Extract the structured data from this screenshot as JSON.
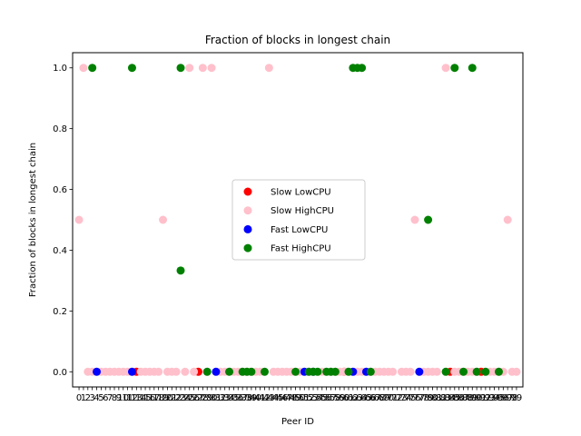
{
  "chart_data": {
    "type": "scatter",
    "title": "Fraction of blocks in longest chain",
    "xlabel": "Peer ID",
    "ylabel": "Fraction of blocks in longest chain",
    "xlim": [
      -1.45,
      100.45
    ],
    "ylim": [
      -0.05,
      1.05
    ],
    "yticks": [
      0.0,
      0.2,
      0.4,
      0.6,
      0.8,
      1.0
    ],
    "ytick_labels": [
      "0.0",
      "0.2",
      "0.4",
      "0.6",
      "0.8",
      "1.0"
    ],
    "xticks": [
      0,
      1,
      2,
      3,
      4,
      5,
      6,
      7,
      8,
      9,
      10,
      11,
      12,
      13,
      14,
      15,
      16,
      17,
      18,
      19,
      20,
      21,
      22,
      23,
      24,
      25,
      26,
      27,
      28,
      29,
      30,
      31,
      32,
      33,
      34,
      35,
      36,
      37,
      38,
      39,
      40,
      41,
      42,
      43,
      44,
      45,
      46,
      47,
      48,
      49,
      50,
      51,
      52,
      53,
      54,
      55,
      56,
      57,
      58,
      59,
      60,
      61,
      62,
      63,
      64,
      65,
      66,
      67,
      68,
      69,
      70,
      71,
      72,
      73,
      74,
      75,
      76,
      77,
      78,
      79,
      80,
      81,
      82,
      83,
      84,
      85,
      86,
      87,
      88,
      89,
      90,
      91,
      92,
      93,
      94,
      95,
      96,
      97,
      98,
      99
    ],
    "grid": false,
    "legend_position": "center",
    "series": [
      {
        "name": "Slow LowCPU",
        "color": "#ff0000",
        "x": [
          13,
          27,
          60,
          84,
          91
        ],
        "y": [
          0,
          0,
          0,
          0,
          0
        ]
      },
      {
        "name": "Slow HighCPU",
        "color": "#ffc0cb",
        "x": [
          0,
          1,
          2,
          3,
          5,
          6,
          7,
          8,
          9,
          10,
          11,
          14,
          15,
          16,
          17,
          18,
          19,
          20,
          21,
          22,
          24,
          25,
          26,
          28,
          29,
          30,
          32,
          33,
          35,
          36,
          37,
          38,
          40,
          41,
          43,
          44,
          45,
          46,
          47,
          48,
          50,
          52,
          55,
          57,
          58,
          59,
          60,
          63,
          64,
          66,
          67,
          68,
          69,
          70,
          71,
          73,
          74,
          75,
          76,
          78,
          79,
          80,
          81,
          83,
          85,
          86,
          88,
          89,
          90,
          93,
          94,
          95,
          96,
          97,
          98,
          99
        ],
        "y": [
          0.5,
          1,
          0,
          0,
          0,
          0,
          0,
          0,
          0,
          0,
          0,
          0,
          0,
          0,
          0,
          0,
          0.5,
          0,
          0,
          0,
          0,
          1,
          0,
          1,
          0,
          1,
          0,
          0,
          0,
          0,
          0,
          0,
          0,
          0,
          1,
          0,
          0,
          0,
          0,
          0,
          0,
          0,
          0,
          0,
          0,
          0,
          0,
          0,
          0,
          0,
          0,
          0,
          0,
          0,
          0,
          0,
          0,
          0,
          0.5,
          0,
          0,
          0,
          0,
          1,
          0,
          0,
          0,
          0,
          0,
          0,
          0,
          0,
          0,
          0.5,
          0,
          0
        ]
      },
      {
        "name": "Fast LowCPU",
        "color": "#0000ff",
        "x": [
          4,
          12,
          31,
          51,
          53,
          62,
          65,
          77
        ],
        "y": [
          0,
          0,
          0,
          0,
          0,
          0,
          0,
          0
        ]
      },
      {
        "name": "Fast HighCPU",
        "color": "#008000",
        "x": [
          3,
          12,
          23,
          23,
          29,
          34,
          37,
          38,
          39,
          42,
          49,
          52,
          53,
          54,
          56,
          57,
          58,
          61,
          62,
          63,
          64,
          66,
          79,
          83,
          85,
          87,
          89,
          90,
          92,
          95
        ],
        "y": [
          1,
          1,
          0.333,
          1,
          0,
          0,
          0,
          0,
          0,
          0,
          0,
          0,
          0,
          0,
          0,
          0,
          0,
          0,
          1,
          1,
          1,
          0,
          0.5,
          0,
          1,
          0,
          1,
          0,
          0,
          0
        ]
      }
    ]
  }
}
